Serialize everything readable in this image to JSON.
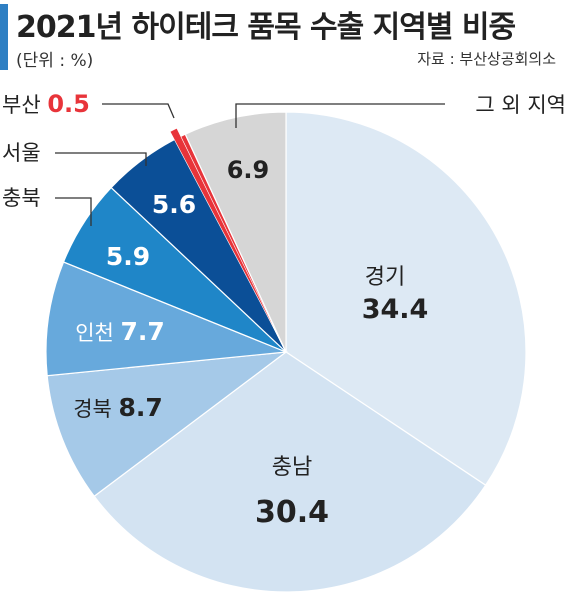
{
  "header": {
    "title": "2021년 하이테크 품목 수출 지역별 비중",
    "unit": "(단위 : %)",
    "source": "자료 : 부산상공회의소"
  },
  "colors": {
    "accent": "#2e7fc3",
    "highlight": "#e8343a",
    "text_dark": "#222222",
    "text_light": "#ffffff"
  },
  "chart_data": {
    "type": "pie",
    "title": "2021년 하이테크 품목 수출 지역별 비중",
    "unit": "%",
    "slices": [
      {
        "label": "경기",
        "value": 34.4,
        "color": "#dde9f4"
      },
      {
        "label": "충남",
        "value": 30.4,
        "color": "#d3e3f2"
      },
      {
        "label": "경북",
        "value": 8.7,
        "color": "#a5c9e8"
      },
      {
        "label": "인천",
        "value": 7.7,
        "color": "#67a9dc"
      },
      {
        "label": "충북",
        "value": 5.9,
        "color": "#1f86c8"
      },
      {
        "label": "서울",
        "value": 5.6,
        "color": "#0b4f97"
      },
      {
        "label": "부산",
        "value": 0.5,
        "color": "#e8343a"
      },
      {
        "label": "그 외 지역",
        "value": 6.9,
        "color": "#d6d6d6"
      }
    ]
  }
}
